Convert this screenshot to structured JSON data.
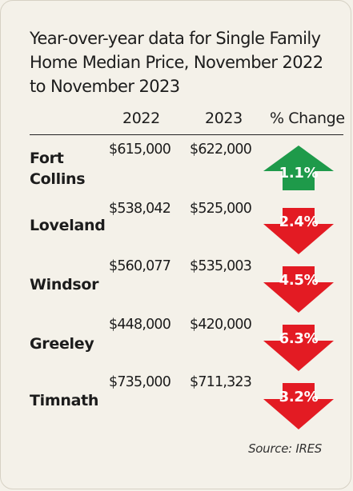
{
  "chart_data": {
    "type": "table",
    "title": "Year-over-year data for Single Family Home Median Price, November 2022 to November 2023",
    "columns": [
      "2022",
      "2023",
      "% Change"
    ],
    "rows": [
      {
        "city": "Fort Collins",
        "v2022": "$615,000",
        "v2023": "$622,000",
        "change": "1.1%",
        "direction": "up",
        "color": "#1e9a4a"
      },
      {
        "city": "Loveland",
        "v2022": "$538,042",
        "v2023": "$525,000",
        "change": "2.4%",
        "direction": "down",
        "color": "#e31b23"
      },
      {
        "city": "Windsor",
        "v2022": "$560,077",
        "v2023": "$535,003",
        "change": "4.5%",
        "direction": "down",
        "color": "#e31b23"
      },
      {
        "city": "Greeley",
        "v2022": "$448,000",
        "v2023": "$420,000",
        "change": "6.3%",
        "direction": "down",
        "color": "#e31b23"
      },
      {
        "city": "Timnath",
        "v2022": "$735,000",
        "v2023": "$711,323",
        "change": "3.2%",
        "direction": "down",
        "color": "#e31b23"
      }
    ],
    "source": "Source: IRES"
  }
}
